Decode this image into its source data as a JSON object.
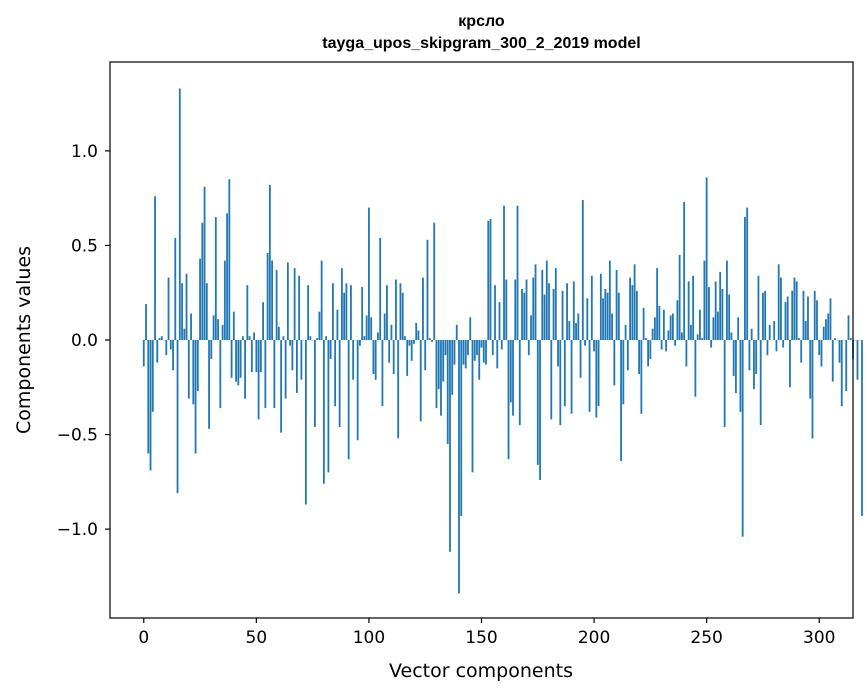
{
  "chart_data": {
    "type": "bar",
    "title": "крсло",
    "subtitle": "tayga_upos_skipgram_300_2_2019 model",
    "xlabel": "Vector components",
    "ylabel": "Components values",
    "xlim": [
      -15,
      315
    ],
    "ylim": [
      -1.47,
      1.47
    ],
    "xticks": [
      0,
      50,
      100,
      150,
      200,
      250,
      300
    ],
    "yticks": [
      -1.0,
      -0.5,
      0.0,
      0.5,
      1.0
    ],
    "ytick_labels": [
      "−1.0",
      "−0.5",
      "0.0",
      "0.5",
      "1.0"
    ],
    "bar_color": "#1f77b4",
    "values": [
      -0.14,
      0.19,
      -0.6,
      -0.69,
      -0.38,
      0.76,
      -0.12,
      0.01,
      0.02,
      0.0,
      -0.08,
      0.33,
      -0.05,
      -0.16,
      0.54,
      -0.81,
      1.33,
      0.3,
      0.06,
      0.35,
      -0.31,
      0.14,
      -0.34,
      -0.6,
      -0.27,
      0.43,
      0.62,
      0.81,
      0.3,
      -0.47,
      -0.1,
      0.13,
      0.65,
      0.11,
      -0.36,
      0.08,
      0.42,
      0.67,
      0.85,
      -0.2,
      0.15,
      -0.22,
      -0.24,
      -0.2,
      0.02,
      -0.31,
      0.29,
      0.02,
      -0.17,
      0.04,
      -0.17,
      -0.42,
      -0.17,
      0.2,
      -0.36,
      0.46,
      0.82,
      0.42,
      -0.36,
      0.37,
      0.07,
      -0.49,
      0.02,
      -0.31,
      0.41,
      -0.03,
      -0.16,
      0.38,
      -0.28,
      0.34,
      -0.21,
      0.0,
      -0.87,
      0.29,
      0.02,
      0.0,
      -0.46,
      0.01,
      0.15,
      0.42,
      -0.76,
      0.02,
      -0.7,
      -0.1,
      0.3,
      -0.35,
      0.16,
      -0.46,
      0.38,
      0.25,
      0.3,
      -0.63,
      0.29,
      -0.21,
      0.0,
      -0.53,
      -0.03,
      0.28,
      0.02,
      0.13,
      0.7,
      0.12,
      -0.18,
      -0.21,
      0.04,
      0.54,
      -0.35,
      0.14,
      0.29,
      -0.12,
      0.08,
      -0.18,
      0.32,
      -0.52,
      0.3,
      0.25,
      0.02,
      -0.19,
      -0.03,
      -0.11,
      -0.02,
      0.09,
      0.05,
      -0.43,
      0.33,
      -0.16,
      0.53,
      0.01,
      -0.01,
      0.62,
      -0.36,
      -0.26,
      -0.4,
      -0.22,
      -0.08,
      -0.55,
      -1.12,
      -0.29,
      -0.13,
      0.08,
      -1.34,
      -0.93,
      -0.13,
      -0.15,
      -0.08,
      0.12,
      -0.7,
      -0.11,
      -0.08,
      -0.21,
      -0.04,
      -0.12,
      -0.13,
      0.63,
      0.64,
      -0.08,
      0.29,
      -0.15,
      0.2,
      -0.05,
      0.71,
      0.32,
      -0.63,
      -0.33,
      -0.4,
      0.32,
      0.71,
      -0.45,
      0.27,
      0.25,
      0.32,
      -0.08,
      0.13,
      0.33,
      0.4,
      -0.66,
      -0.74,
      0.37,
      0.24,
      0.42,
      0.3,
      -0.42,
      0.27,
      0.38,
      -0.14,
      -0.45,
      0.26,
      -0.35,
      0.3,
      0.1,
      -0.39,
      0.31,
      0.09,
      0.14,
      -0.2,
      0.74,
      -0.03,
      0.22,
      -0.38,
      0.34,
      -0.06,
      -0.41,
      -0.35,
      0.35,
      0.22,
      0.27,
      0.25,
      0.42,
      0.14,
      -0.24,
      0.37,
      0.25,
      -0.64,
      -0.34,
      0.08,
      -0.16,
      0.33,
      0.29,
      0.4,
      0.26,
      -0.18,
      -0.39,
      0.17,
      0.01,
      -0.14,
      -0.1,
      0.06,
      0.12,
      0.38,
      0.18,
      -0.05,
      0.16,
      -0.06,
      0.05,
      0.13,
      0.14,
      -0.03,
      0.21,
      0.45,
      0.04,
      0.73,
      -0.14,
      0.31,
      0.08,
      0.34,
      -0.3,
      0.03,
      0.16,
      0.01,
      0.42,
      0.86,
      0.28,
      -0.04,
      0.12,
      0.31,
      0.15,
      0.36,
      0.27,
      -0.46,
      0.42,
      0.24,
      0.04,
      -0.19,
      -0.28,
      0.12,
      -0.38,
      -1.04,
      0.65,
      0.7,
      -0.16,
      0.06,
      -0.26,
      -0.18,
      0.34,
      -0.45,
      0.25,
      0.26,
      -0.08,
      0.08,
      0.0,
      0.1,
      -0.06,
      0.4,
      0.33,
      -0.04,
      0.2,
      0.23,
      -0.25,
      0.26,
      0.33,
      0.31,
      0.01,
      -0.12,
      0.26,
      0.1,
      0.23,
      -0.31,
      -0.52,
      0.26,
      0.21,
      -0.08,
      -0.14,
      0.07,
      0.11,
      0.14,
      0.22,
      -0.22,
      0.01,
      0.0,
      -0.12,
      -0.35,
      0.0,
      -0.27,
      0.13,
      0.01,
      -0.1,
      0.0,
      -0.21,
      0.0,
      -0.93
    ]
  }
}
